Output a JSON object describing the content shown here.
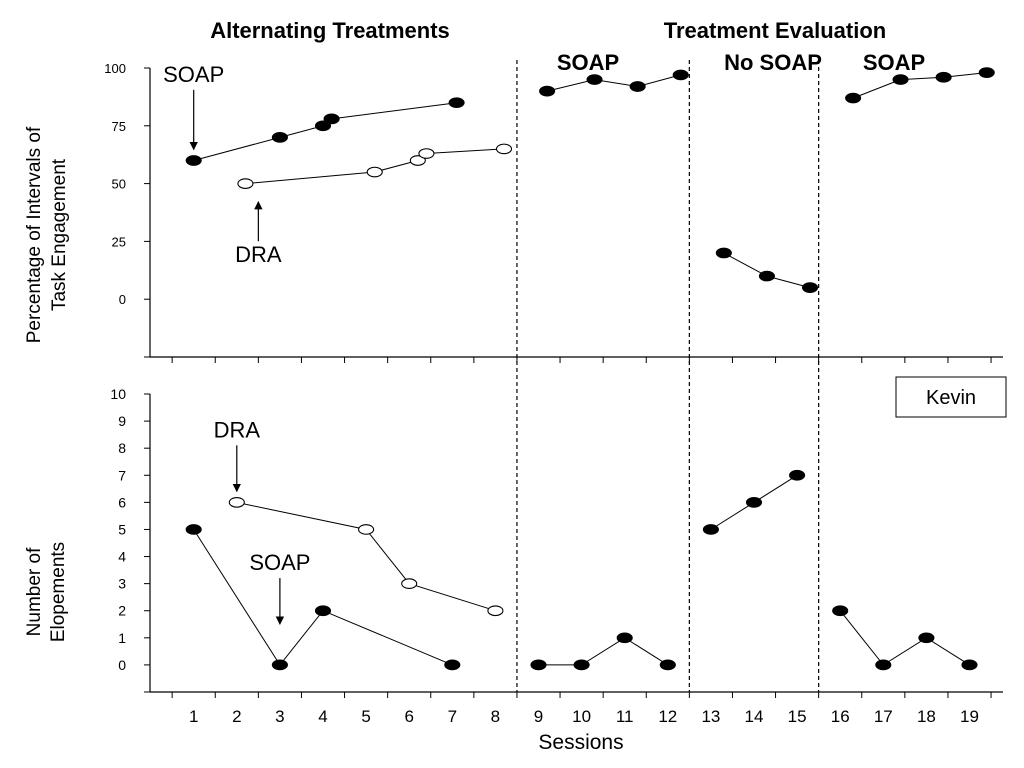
{
  "chart_data": [
    {
      "type": "line",
      "ylabel": [
        "Percentage of Intervals of",
        "Task Engagement"
      ],
      "ylim": [
        -25,
        100
      ],
      "yticks": [
        0,
        25,
        50,
        75,
        100
      ],
      "grid": false,
      "series": [
        {
          "name": "SOAP",
          "marker": "filled",
          "segments": [
            [
              [
                1,
                60
              ],
              [
                3,
                70
              ],
              [
                4,
                75
              ]
            ],
            [
              [
                4.2,
                78
              ],
              [
                7.1,
                85
              ]
            ],
            [
              [
                9.2,
                90
              ],
              [
                10.3,
                95
              ],
              [
                11.3,
                92
              ],
              [
                12.3,
                97
              ]
            ],
            [
              [
                16.3,
                87
              ],
              [
                17.4,
                95
              ],
              [
                18.4,
                96
              ],
              [
                19.4,
                98
              ]
            ]
          ]
        },
        {
          "name": "DRA",
          "marker": "open",
          "segments": [
            [
              [
                2.2,
                50
              ],
              [
                5.2,
                55
              ],
              [
                6.2,
                60
              ]
            ],
            [
              [
                6.4,
                63
              ],
              [
                8.2,
                65
              ]
            ]
          ]
        },
        {
          "name": "No SOAP",
          "marker": "filled",
          "segments": [
            [
              [
                13.3,
                20
              ],
              [
                14.3,
                10
              ],
              [
                15.3,
                5
              ]
            ]
          ]
        }
      ],
      "annotations": [
        {
          "text": "SOAP",
          "at": [
            1,
            60
          ],
          "text_at": [
            1,
            94
          ]
        },
        {
          "text": "DRA",
          "at": [
            2.5,
            46
          ],
          "text_at": [
            2.5,
            16
          ]
        }
      ]
    },
    {
      "type": "line",
      "xlabel": "Sessions",
      "ylabel": [
        "Number of",
        "Elopements"
      ],
      "ylim": [
        -1,
        10
      ],
      "yticks": [
        0,
        1,
        2,
        3,
        4,
        5,
        6,
        7,
        8,
        9,
        10
      ],
      "x_categories": [
        "1",
        "2",
        "3",
        "4",
        "5",
        "6",
        "7",
        "8",
        "9",
        "10",
        "11",
        "12",
        "13",
        "14",
        "15",
        "16",
        "17",
        "18",
        "19"
      ],
      "grid": false,
      "series": [
        {
          "name": "SOAP",
          "marker": "filled",
          "segments": [
            [
              [
                1,
                5
              ],
              [
                3,
                0
              ],
              [
                4,
                2
              ],
              [
                7,
                0
              ]
            ],
            [
              [
                9,
                0
              ],
              [
                10,
                0
              ],
              [
                11,
                1
              ],
              [
                12,
                0
              ]
            ],
            [
              [
                16,
                2
              ],
              [
                17,
                0
              ],
              [
                18,
                1
              ],
              [
                19,
                0
              ]
            ]
          ]
        },
        {
          "name": "DRA",
          "marker": "open",
          "segments": [
            [
              [
                2,
                6
              ],
              [
                5,
                5
              ],
              [
                6,
                3
              ],
              [
                8,
                2
              ]
            ]
          ]
        },
        {
          "name": "No SOAP",
          "marker": "filled",
          "segments": [
            [
              [
                13,
                5
              ],
              [
                14,
                6
              ],
              [
                15,
                7
              ]
            ]
          ]
        }
      ],
      "annotations": [
        {
          "text": "DRA",
          "at": [
            2,
            6
          ],
          "text_at": [
            2,
            8.4
          ]
        },
        {
          "text": "SOAP",
          "at": [
            3,
            1.1
          ],
          "text_at": [
            3,
            3.5
          ]
        }
      ],
      "legend_box": "Kevin"
    }
  ],
  "phases": {
    "headers": [
      "Alternating Treatments",
      "Treatment Evaluation"
    ],
    "labels": [
      "SOAP",
      "No SOAP",
      "SOAP"
    ],
    "dividers_after_session": [
      8,
      12,
      15
    ]
  }
}
